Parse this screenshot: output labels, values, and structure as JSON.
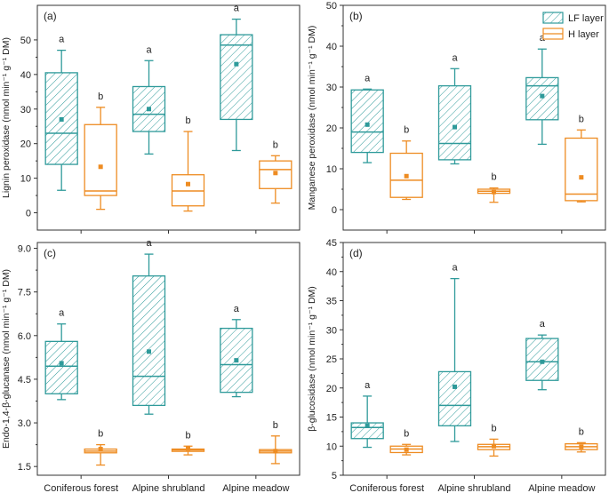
{
  "colors": {
    "lf": "#2e9a9a",
    "h": "#ee8c22",
    "axis": "#333333"
  },
  "legend": {
    "lf_label": "LF layer",
    "h_label": "H layer"
  },
  "chart_data": [
    {
      "type": "box",
      "panel_label": "(a)",
      "ylabel": "Lignin peroxidase (nmol min⁻¹ g⁻¹ DM)",
      "ylim": [
        -5,
        60
      ],
      "yticks": [
        0,
        10,
        20,
        30,
        40,
        50
      ],
      "ytick_labels": [
        "0",
        "10",
        "20",
        "30",
        "40",
        "50"
      ],
      "categories": [
        "Coniferous forest",
        "Alpine shrubland",
        "Alpine meadow"
      ],
      "series": [
        {
          "name": "LF layer",
          "boxes": [
            {
              "min": 6.5,
              "q1": 14,
              "median": 23,
              "q3": 40.5,
              "max": 47,
              "mean": 27,
              "label": "a"
            },
            {
              "min": 17,
              "q1": 23.5,
              "median": 28.5,
              "q3": 36.5,
              "max": 44,
              "mean": 30,
              "label": "a"
            },
            {
              "min": 18,
              "q1": 27,
              "median": 48.5,
              "q3": 51.5,
              "max": 56,
              "mean": 43,
              "label": "a"
            }
          ]
        },
        {
          "name": "H layer",
          "boxes": [
            {
              "min": 1,
              "q1": 5,
              "median": 6.3,
              "q3": 25.5,
              "max": 30.5,
              "mean": 13.3,
              "label": "b"
            },
            {
              "min": 0.5,
              "q1": 2,
              "median": 6.3,
              "q3": 11,
              "max": 23.5,
              "mean": 8.3,
              "label": "b"
            },
            {
              "min": 2.8,
              "q1": 7,
              "median": 12.5,
              "q3": 15,
              "max": 16.5,
              "mean": 11.5,
              "label": "b"
            }
          ]
        }
      ]
    },
    {
      "type": "box",
      "panel_label": "(b)",
      "ylabel": "Manganese peroxidase (nmol min⁻¹ g⁻¹ DM)",
      "ylim": [
        -5,
        50
      ],
      "yticks": [
        0,
        10,
        20,
        30,
        40,
        50
      ],
      "ytick_labels": [
        "0",
        "10",
        "20",
        "30",
        "40",
        "50"
      ],
      "categories": [
        "Coniferous forest",
        "Alpine shrubland",
        "Alpine meadow"
      ],
      "show_legend": true,
      "series": [
        {
          "name": "LF layer",
          "boxes": [
            {
              "min": 11.5,
              "q1": 14,
              "median": 19,
              "q3": 29.3,
              "max": 29.5,
              "mean": 20.8,
              "label": "a"
            },
            {
              "min": 11.2,
              "q1": 12.2,
              "median": 16.2,
              "q3": 30.3,
              "max": 34.5,
              "mean": 20.2,
              "label": "a"
            },
            {
              "min": 16,
              "q1": 22,
              "median": 30.3,
              "q3": 32.3,
              "max": 39.3,
              "mean": 27.8,
              "label": "a"
            }
          ]
        },
        {
          "name": "H layer",
          "boxes": [
            {
              "min": 2.5,
              "q1": 3,
              "median": 7.2,
              "q3": 13.8,
              "max": 16.8,
              "mean": 8.2,
              "label": "b"
            },
            {
              "min": 1.8,
              "q1": 4,
              "median": 4.5,
              "q3": 5,
              "max": 5.3,
              "mean": 4.3,
              "label": "b"
            },
            {
              "min": 1.9,
              "q1": 2.2,
              "median": 3.8,
              "q3": 17.5,
              "max": 19.5,
              "mean": 7.9,
              "label": "b"
            }
          ]
        }
      ]
    },
    {
      "type": "box",
      "panel_label": "(c)",
      "ylabel": "Endo-1,4-β-glucanase (nmol min⁻¹ g⁻¹ DM)",
      "ylim": [
        1.2,
        9.2
      ],
      "yticks": [
        1.5,
        3.0,
        4.5,
        6.0,
        7.5,
        9.0
      ],
      "ytick_labels": [
        "1.5",
        "3.0",
        "4.5",
        "6.0",
        "7.5",
        "9.0"
      ],
      "categories": [
        "Coniferous forest",
        "Alpine shrubland",
        "Alpine meadow"
      ],
      "xtick_labels": [
        "Coniferous forest",
        "Alpine shrubland",
        "Alpine meadow"
      ],
      "series": [
        {
          "name": "LF layer",
          "boxes": [
            {
              "min": 3.8,
              "q1": 4,
              "median": 4.95,
              "q3": 5.8,
              "max": 6.4,
              "mean": 5.05,
              "label": "a"
            },
            {
              "min": 3.3,
              "q1": 3.6,
              "median": 4.6,
              "q3": 8.05,
              "max": 8.8,
              "mean": 5.45,
              "label": "a"
            },
            {
              "min": 3.9,
              "q1": 4.05,
              "median": 5.0,
              "q3": 6.25,
              "max": 6.55,
              "mean": 5.15,
              "label": "a"
            }
          ]
        },
        {
          "name": "H layer",
          "boxes": [
            {
              "min": 1.55,
              "q1": 1.97,
              "median": 2.03,
              "q3": 2.1,
              "max": 2.25,
              "mean": 2.1,
              "label": "b"
            },
            {
              "min": 1.9,
              "q1": 2.02,
              "median": 2.07,
              "q3": 2.1,
              "max": 2.2,
              "mean": 2.12,
              "label": "b"
            },
            {
              "min": 1.6,
              "q1": 1.97,
              "median": 2.03,
              "q3": 2.08,
              "max": 2.55,
              "mean": 2.03,
              "label": "b"
            }
          ]
        }
      ]
    },
    {
      "type": "box",
      "panel_label": "(d)",
      "ylabel": "β-glucosidase (nmol min⁻¹ g⁻¹ DM)",
      "ylim": [
        5,
        45
      ],
      "yticks": [
        5,
        10,
        15,
        20,
        25,
        30,
        35,
        40,
        45
      ],
      "ytick_labels": [
        "5",
        "10",
        "15",
        "20",
        "25",
        "30",
        "35",
        "40",
        "45"
      ],
      "categories": [
        "Coniferous forest",
        "Alpine shrubland",
        "Alpine meadow"
      ],
      "xtick_labels": [
        "Coniferous forest",
        "Alpine shrubland",
        "Alpine meadow"
      ],
      "series": [
        {
          "name": "LF layer",
          "boxes": [
            {
              "min": 9.8,
              "q1": 11.3,
              "median": 13.2,
              "q3": 14,
              "max": 18.6,
              "mean": 13.5,
              "label": "a"
            },
            {
              "min": 10.8,
              "q1": 13.5,
              "median": 17,
              "q3": 22.8,
              "max": 38.8,
              "mean": 20.2,
              "label": "a"
            },
            {
              "min": 19.7,
              "q1": 21.3,
              "median": 24.5,
              "q3": 28.5,
              "max": 29.1,
              "mean": 24.5,
              "label": "a"
            }
          ]
        },
        {
          "name": "H layer",
          "boxes": [
            {
              "min": 8.5,
              "q1": 8.9,
              "median": 9.5,
              "q3": 10,
              "max": 10.3,
              "mean": 9.4,
              "label": "b"
            },
            {
              "min": 8.3,
              "q1": 9.4,
              "median": 9.9,
              "q3": 10.3,
              "max": 11.2,
              "mean": 10,
              "label": "b"
            },
            {
              "min": 9.0,
              "q1": 9.4,
              "median": 9.9,
              "q3": 10.4,
              "max": 10.6,
              "mean": 9.9,
              "label": "b"
            }
          ]
        }
      ]
    }
  ]
}
